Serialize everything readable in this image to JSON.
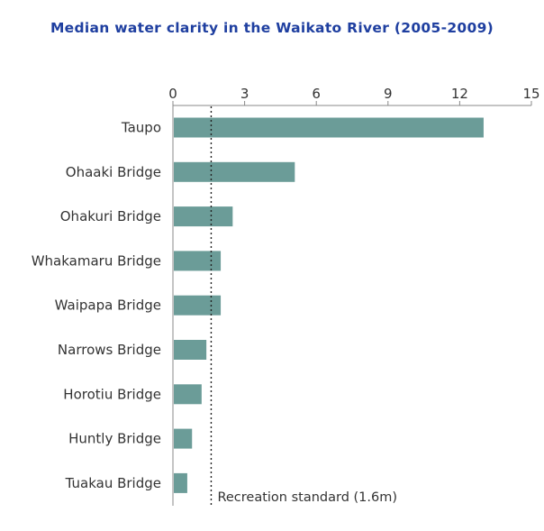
{
  "chart_data": {
    "type": "bar",
    "orientation": "horizontal",
    "title": "Median water clarity in the Waikato River (2005-2009)",
    "categories": [
      "Taupo",
      "Ohaaki Bridge",
      "Ohakuri Bridge",
      "Whakamaru Bridge",
      "Waipapa Bridge",
      "Narrows Bridge",
      "Horotiu Bridge",
      "Huntly Bridge",
      "Tuakau Bridge"
    ],
    "values": [
      13.0,
      5.1,
      2.5,
      2.0,
      2.0,
      1.4,
      1.2,
      0.8,
      0.6
    ],
    "xlim": [
      0,
      15
    ],
    "xticks": [
      0,
      3,
      6,
      9,
      12,
      15
    ],
    "xtick_labels": [
      "0",
      "3",
      "6",
      "9",
      "12",
      "15"
    ],
    "reference_line": {
      "value": 1.6,
      "label": "Recreation standard (1.6m)",
      "style": "dotted"
    },
    "bar_color": "#6b9c98",
    "axis_color": "#888888",
    "title_color": "#1f3fa0",
    "grid": false
  }
}
